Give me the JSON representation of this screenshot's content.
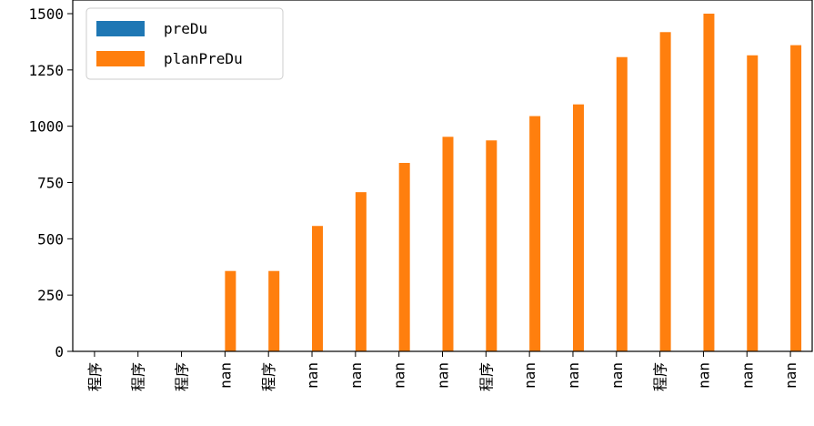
{
  "chart_data": {
    "type": "bar",
    "categories": [
      "程序",
      "程序",
      "程序",
      "nan",
      "程序",
      "nan",
      "nan",
      "nan",
      "nan",
      "程序",
      "nan",
      "nan",
      "nan",
      "程序",
      "nan",
      "nan",
      "nan"
    ],
    "series": [
      {
        "name": "preDu",
        "color": "#1f77b4",
        "values": [
          0,
          0,
          0,
          0,
          0,
          0,
          0,
          0,
          0,
          0,
          0,
          0,
          0,
          0,
          0,
          0,
          0
        ]
      },
      {
        "name": "planPreDu",
        "color": "#ff7f0e",
        "values": [
          0,
          0,
          0,
          357,
          357,
          557,
          707,
          837,
          953,
          937,
          1045,
          1097,
          1307,
          1418,
          1500,
          1315,
          1360
        ]
      }
    ],
    "ylim": [
      0,
      1500
    ],
    "yticks": [
      0,
      250,
      500,
      750,
      1000,
      1250,
      1500
    ],
    "legend_position": "top-left",
    "grid": false
  }
}
